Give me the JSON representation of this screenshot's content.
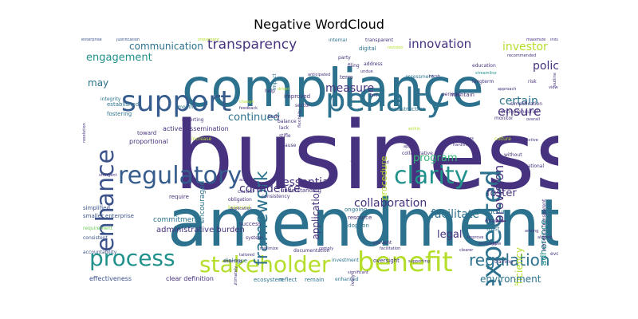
{
  "title": "Negative WordCloud",
  "colors": {
    "purple": "#46327e",
    "indigo": "#3b528b",
    "blue": "#365c8d",
    "steel": "#2c728e",
    "teal": "#21918c",
    "sea": "#1f9e89",
    "green": "#35b779",
    "lime": "#6ece58",
    "yellow": "#b5de2b"
  },
  "words": [
    {
      "text": "compliance",
      "color": "#2c728e",
      "size": 66
    },
    {
      "text": "business",
      "color": "#46327e",
      "size": 118
    },
    {
      "text": "amendment",
      "color": "#2c728e",
      "size": 82
    },
    {
      "text": "penalty",
      "color": "#2c728e",
      "size": 40
    },
    {
      "text": "support",
      "color": "#365c8d",
      "size": 36
    },
    {
      "text": "enhance",
      "color": "#3b528b",
      "size": 30
    },
    {
      "text": "expected",
      "color": "#2c728e",
      "size": 34
    },
    {
      "text": "regulatory",
      "color": "#365c8d",
      "size": 30
    },
    {
      "text": "clarity",
      "color": "#21918c",
      "size": 30
    },
    {
      "text": "process",
      "color": "#21918c",
      "size": 28
    },
    {
      "text": "stakeholder",
      "color": "#b5de2b",
      "size": 28
    },
    {
      "text": "benefit",
      "color": "#b5de2b",
      "size": 34
    },
    {
      "text": "regulation",
      "color": "#2c728e",
      "size": 20
    },
    {
      "text": "framework",
      "color": "#2c728e",
      "size": 22
    },
    {
      "text": "transparency",
      "color": "#46327e",
      "size": 17
    },
    {
      "text": "innovation",
      "color": "#46327e",
      "size": 15
    },
    {
      "text": "communication",
      "color": "#2c728e",
      "size": 12
    },
    {
      "text": "engagement",
      "color": "#21918c",
      "size": 13
    },
    {
      "text": "investor",
      "color": "#b5de2b",
      "size": 14
    },
    {
      "text": "policy",
      "color": "#46327e",
      "size": 14
    },
    {
      "text": "certain",
      "color": "#2c728e",
      "size": 14
    },
    {
      "text": "ensure",
      "color": "#46327e",
      "size": 16
    },
    {
      "text": "provision",
      "color": "#46327e",
      "size": 16
    },
    {
      "text": "measure",
      "color": "#46327e",
      "size": 14
    },
    {
      "text": "continued",
      "color": "#2c728e",
      "size": 13
    },
    {
      "text": "confidence",
      "color": "#46327e",
      "size": 14
    },
    {
      "text": "essential",
      "color": "#46327e",
      "size": 14
    },
    {
      "text": "program",
      "color": "#35b779",
      "size": 13
    },
    {
      "text": "collaboration",
      "color": "#46327e",
      "size": 14
    },
    {
      "text": "facilitate",
      "color": "#2c728e",
      "size": 14
    },
    {
      "text": "foster",
      "color": "#46327e",
      "size": 13
    },
    {
      "text": "legal",
      "color": "#46327e",
      "size": 13
    },
    {
      "text": "efficiency",
      "color": "#b5de2b",
      "size": 12
    },
    {
      "text": "adherence",
      "color": "#21918c",
      "size": 11
    },
    {
      "text": "environment",
      "color": "#2c728e",
      "size": 12
    },
    {
      "text": "may",
      "color": "#2c728e",
      "size": 12
    },
    {
      "text": "application",
      "color": "#46327e",
      "size": 12
    },
    {
      "text": "procedure",
      "color": "#b5de2b",
      "size": 11
    },
    {
      "text": "encouraged",
      "color": "#2c728e",
      "size": 9
    },
    {
      "text": "administrative burden",
      "color": "#46327e",
      "size": 10
    },
    {
      "text": "commitment",
      "color": "#2c728e",
      "size": 9
    },
    {
      "text": "clear definition",
      "color": "#46327e",
      "size": 8
    },
    {
      "text": "effectiveness",
      "color": "#3b528b",
      "size": 8
    },
    {
      "text": "ecosystem",
      "color": "#2c728e",
      "size": 7
    },
    {
      "text": "reflect",
      "color": "#2c728e",
      "size": 7
    },
    {
      "text": "remain",
      "color": "#2c728e",
      "size": 7
    },
    {
      "text": "enhanced",
      "color": "#2c728e",
      "size": 6
    },
    {
      "text": "oversight",
      "color": "#46327e",
      "size": 7
    },
    {
      "text": "investment",
      "color": "#2c728e",
      "size": 6
    },
    {
      "text": "dialogue",
      "color": "#2c728e",
      "size": 7
    },
    {
      "text": "understanding",
      "color": "#46327e",
      "size": 7
    },
    {
      "text": "ongoing",
      "color": "#2c728e",
      "size": 7
    },
    {
      "text": "resource",
      "color": "#46327e",
      "size": 7
    },
    {
      "text": "adoption",
      "color": "#2c728e",
      "size": 7
    },
    {
      "text": "structure",
      "color": "#2c728e",
      "size": 8
    },
    {
      "text": "enable",
      "color": "#46327e",
      "size": 7
    },
    {
      "text": "trust",
      "color": "#2c728e",
      "size": 7
    },
    {
      "text": "simplified",
      "color": "#3b528b",
      "size": 7
    },
    {
      "text": "smaller enterprise",
      "color": "#3b528b",
      "size": 7
    },
    {
      "text": "requirement",
      "color": "#6ece58",
      "size": 6
    },
    {
      "text": "consistent",
      "color": "#3b528b",
      "size": 6
    },
    {
      "text": "accountability",
      "color": "#3b528b",
      "size": 6
    },
    {
      "text": "success",
      "color": "#46327e",
      "size": 7
    },
    {
      "text": "balanced",
      "color": "#b5de2b",
      "size": 6
    },
    {
      "text": "obligation",
      "color": "#46327e",
      "size": 6
    },
    {
      "text": "crucial",
      "color": "#46327e",
      "size": 6
    },
    {
      "text": "require",
      "color": "#46327e",
      "size": 7
    },
    {
      "text": "proportional",
      "color": "#46327e",
      "size": 8
    },
    {
      "text": "increase",
      "color": "#b5de2b",
      "size": 6
    },
    {
      "text": "active dissemination",
      "color": "#46327e",
      "size": 8
    },
    {
      "text": "toward",
      "color": "#46327e",
      "size": 7
    },
    {
      "text": "fostering",
      "color": "#2c728e",
      "size": 7
    },
    {
      "text": "reporting",
      "color": "#46327e",
      "size": 6
    },
    {
      "text": "smooth",
      "color": "#2c728e",
      "size": 6
    },
    {
      "text": "established",
      "color": "#2c728e",
      "size": 7
    },
    {
      "text": "integrity",
      "color": "#2c728e",
      "size": 6
    },
    {
      "text": "enterprise",
      "color": "#3b528b",
      "size": 5
    },
    {
      "text": "justification",
      "color": "#3b528b",
      "size": 5
    },
    {
      "text": "implement",
      "color": "#b5de2b",
      "size": 5
    },
    {
      "text": "internal",
      "color": "#2c728e",
      "size": 6
    },
    {
      "text": "transparent",
      "color": "#46327e",
      "size": 6
    },
    {
      "text": "maximize",
      "color": "#46327e",
      "size": 5
    },
    {
      "text": "initiative",
      "color": "#46327e",
      "size": 5
    },
    {
      "text": "digital",
      "color": "#2c728e",
      "size": 7
    },
    {
      "text": "revision",
      "color": "#b5de2b",
      "size": 5
    },
    {
      "text": "party",
      "color": "#46327e",
      "size": 6
    },
    {
      "text": "filing",
      "color": "#46327e",
      "size": 6
    },
    {
      "text": "address",
      "color": "#46327e",
      "size": 6
    },
    {
      "text": "education",
      "color": "#46327e",
      "size": 6
    },
    {
      "text": "recommended",
      "color": "#46327e",
      "size": 5
    },
    {
      "text": "streamline",
      "color": "#21918c",
      "size": 5
    },
    {
      "text": "longterm",
      "color": "#46327e",
      "size": 6
    },
    {
      "text": "risk",
      "color": "#46327e",
      "size": 6
    },
    {
      "text": "term",
      "color": "#46327e",
      "size": 7
    },
    {
      "text": "assessment",
      "color": "#2c728e",
      "size": 6
    },
    {
      "text": "impact",
      "color": "#2c728e",
      "size": 6
    },
    {
      "text": "help",
      "color": "#46327e",
      "size": 6
    },
    {
      "text": "driver",
      "color": "#b5de2b",
      "size": 5
    },
    {
      "text": "improved",
      "color": "#46327e",
      "size": 7
    },
    {
      "text": "periodic",
      "color": "#46327e",
      "size": 6
    },
    {
      "text": "maintain",
      "color": "#46327e",
      "size": 7
    },
    {
      "text": "simplification",
      "color": "#46327e",
      "size": 6
    },
    {
      "text": "entrepreneurial",
      "color": "#46327e",
      "size": 6
    },
    {
      "text": "monitor",
      "color": "#46327e",
      "size": 6
    },
    {
      "text": "constructive",
      "color": "#2c728e",
      "size": 7
    },
    {
      "text": "within",
      "color": "#b5de2b",
      "size": 5
    },
    {
      "text": "balance",
      "color": "#46327e",
      "size": 6
    },
    {
      "text": "body",
      "color": "#46327e",
      "size": 6
    },
    {
      "text": "sector",
      "color": "#46327e",
      "size": 6
    },
    {
      "text": "flexibility",
      "color": "#46327e",
      "size": 5
    },
    {
      "text": "lack",
      "color": "#46327e",
      "size": 6
    },
    {
      "text": "stifle",
      "color": "#46327e",
      "size": 6
    },
    {
      "text": "clause",
      "color": "#46327e",
      "size": 6
    },
    {
      "text": "appear",
      "color": "#46327e",
      "size": 5
    },
    {
      "text": "practical",
      "color": "#46327e",
      "size": 5
    },
    {
      "text": "promote",
      "color": "#46327e",
      "size": 6
    },
    {
      "text": "collaborative",
      "color": "#46327e",
      "size": 6
    },
    {
      "text": "eliminates",
      "color": "#46327e",
      "size": 5
    },
    {
      "text": "hardship",
      "color": "#46327e",
      "size": 5
    },
    {
      "text": "objective",
      "color": "#46327e",
      "size": 5
    },
    {
      "text": "without",
      "color": "#46327e",
      "size": 6
    },
    {
      "text": "operational",
      "color": "#46327e",
      "size": 6
    },
    {
      "text": "culture",
      "color": "#b5de2b",
      "size": 6
    },
    {
      "text": "avoid",
      "color": "#46327e",
      "size": 5
    },
    {
      "text": "comply",
      "color": "#46327e",
      "size": 5
    },
    {
      "text": "positively",
      "color": "#46327e",
      "size": 6
    },
    {
      "text": "facilitation",
      "color": "#46327e",
      "size": 5
    },
    {
      "text": "prevent",
      "color": "#46327e",
      "size": 6
    },
    {
      "text": "enforcing",
      "color": "#46327e",
      "size": 5
    },
    {
      "text": "documentation",
      "color": "#46327e",
      "size": 6
    },
    {
      "text": "system",
      "color": "#46327e",
      "size": 6
    },
    {
      "text": "minimize",
      "color": "#46327e",
      "size": 5
    },
    {
      "text": "significant",
      "color": "#46327e",
      "size": 5
    },
    {
      "text": "supporting",
      "color": "#46327e",
      "size": 5
    },
    {
      "text": "training",
      "color": "#46327e",
      "size": 6
    },
    {
      "text": "evolving",
      "color": "#46327e",
      "size": 6
    },
    {
      "text": "clearer",
      "color": "#46327e",
      "size": 5
    },
    {
      "text": "improve",
      "color": "#46327e",
      "size": 5
    },
    {
      "text": "including",
      "color": "#46327e",
      "size": 5
    },
    {
      "text": "grow",
      "color": "#46327e",
      "size": 5
    },
    {
      "text": "among",
      "color": "#46327e",
      "size": 5
    },
    {
      "text": "aligned",
      "color": "#46327e",
      "size": 5
    },
    {
      "text": "tailored",
      "color": "#46327e",
      "size": 5
    },
    {
      "text": "introduce transparent",
      "color": "#46327e",
      "size": 6
    },
    {
      "text": "change",
      "color": "#b5de2b",
      "size": 5
    },
    {
      "text": "feedback",
      "color": "#46327e",
      "size": 5
    },
    {
      "text": "anticipated",
      "color": "#46327e",
      "size": 5
    },
    {
      "text": "undue",
      "color": "#46327e",
      "size": 5
    },
    {
      "text": "viewed",
      "color": "#46327e",
      "size": 5
    },
    {
      "text": "approach",
      "color": "#46327e",
      "size": 5
    },
    {
      "text": "resolution",
      "color": "#46327e",
      "size": 5
    },
    {
      "text": "stringent",
      "color": "#46327e",
      "size": 5
    },
    {
      "text": "duplication",
      "color": "#46327e",
      "size": 5
    },
    {
      "text": "consistency",
      "color": "#46327e",
      "size": 6
    },
    {
      "text": "achieve",
      "color": "#46327e",
      "size": 5
    },
    {
      "text": "harsh",
      "color": "#46327e",
      "size": 5
    },
    {
      "text": "outline",
      "color": "#46327e",
      "size": 5
    },
    {
      "text": "ultimately",
      "color": "#46327e",
      "size": 5
    },
    {
      "text": "overall",
      "color": "#46327e",
      "size": 5
    },
    {
      "text": "find",
      "color": "#46327e",
      "size": 5
    }
  ]
}
